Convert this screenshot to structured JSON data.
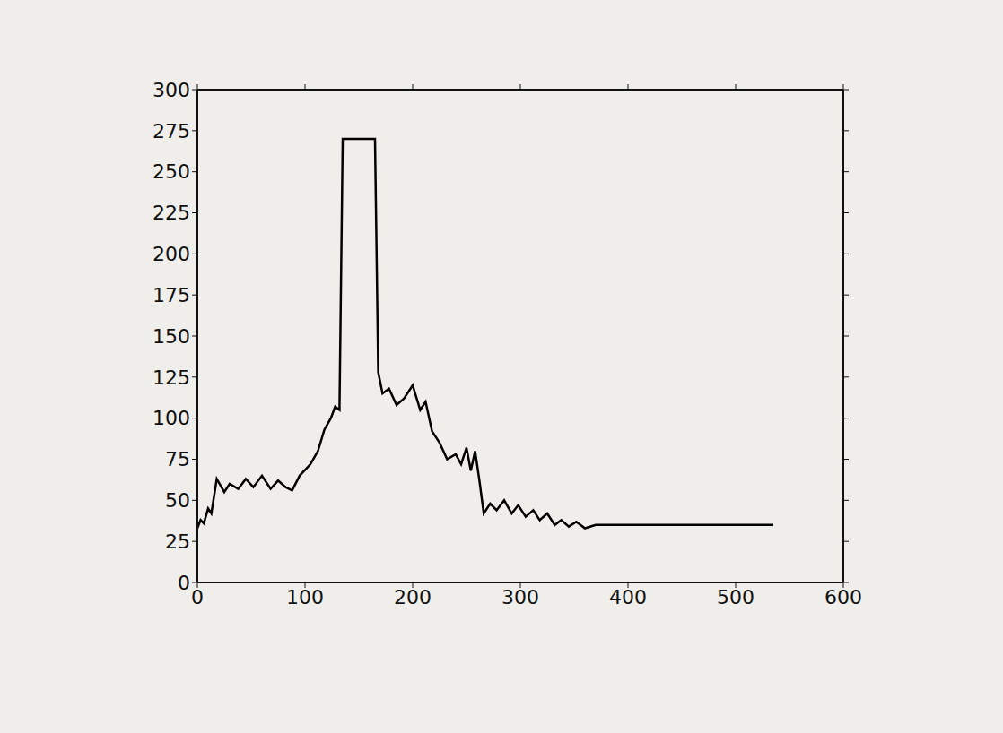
{
  "chart_data": {
    "type": "line",
    "x": [
      0,
      3,
      6,
      10,
      13,
      18,
      25,
      30,
      38,
      45,
      52,
      60,
      68,
      75,
      82,
      88,
      95,
      105,
      112,
      118,
      124,
      128,
      132,
      135,
      165,
      168,
      172,
      178,
      185,
      192,
      200,
      207,
      212,
      218,
      225,
      232,
      240,
      245,
      250,
      254,
      258,
      262,
      266,
      272,
      278,
      285,
      292,
      298,
      305,
      312,
      318,
      325,
      332,
      338,
      345,
      352,
      360,
      370,
      535
    ],
    "values": [
      33,
      38,
      36,
      45,
      42,
      63,
      55,
      60,
      57,
      63,
      58,
      65,
      57,
      62,
      58,
      56,
      65,
      72,
      80,
      93,
      100,
      107,
      105,
      270,
      270,
      128,
      115,
      118,
      108,
      112,
      120,
      105,
      110,
      92,
      85,
      75,
      78,
      72,
      82,
      68,
      80,
      62,
      42,
      48,
      44,
      50,
      42,
      47,
      40,
      44,
      38,
      42,
      35,
      38,
      34,
      37,
      33,
      35,
      35
    ],
    "color": "#000000",
    "xlim": [
      0,
      600
    ],
    "xticks": [
      0,
      100,
      200,
      300,
      400,
      500,
      600
    ],
    "ylim": [
      0,
      300
    ],
    "yticks": [
      0,
      25,
      50,
      75,
      100,
      125,
      150,
      175,
      200,
      225,
      250,
      275,
      300
    ],
    "grid": false
  }
}
